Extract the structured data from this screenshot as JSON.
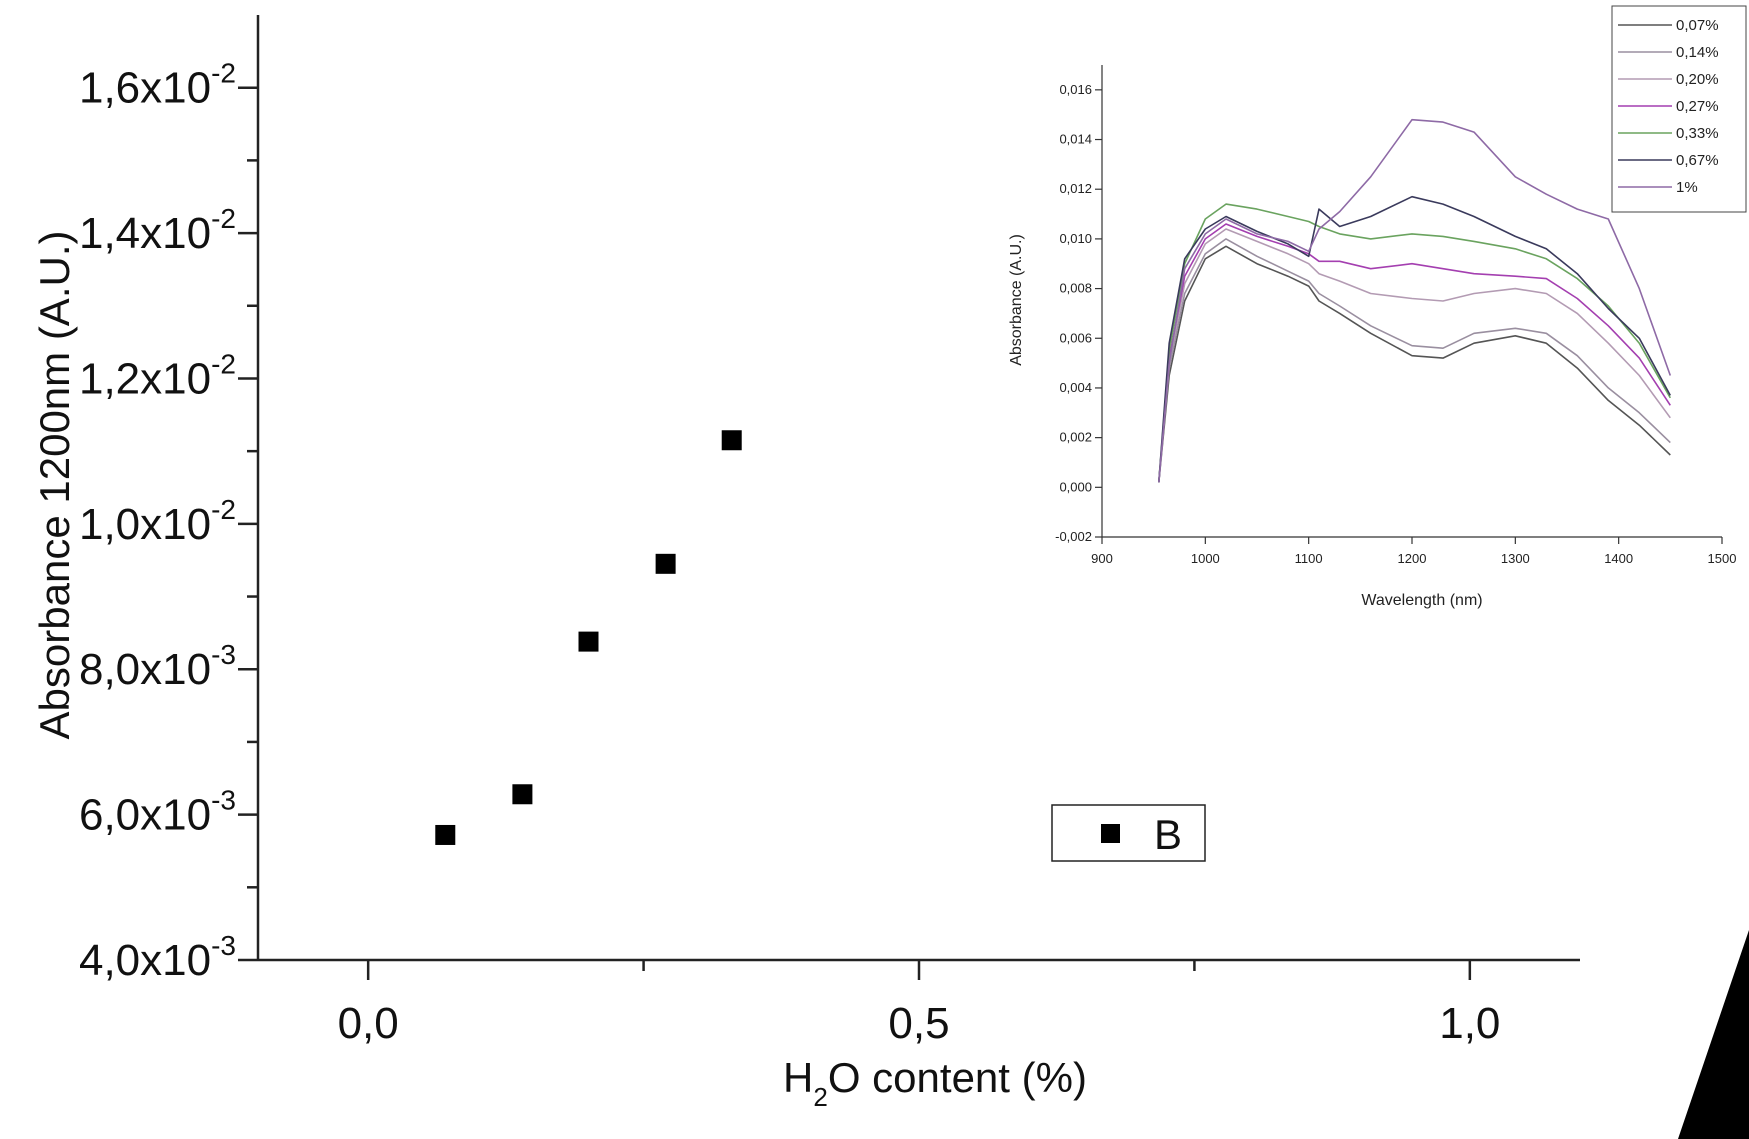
{
  "chart_data": [
    {
      "type": "scatter",
      "xlabel_main": "H",
      "xlabel_sub": "2",
      "xlabel_rest": "O content (%)",
      "ylabel": "Absorbance 1200nm (A.U.)",
      "xlim": [
        -0.1,
        1.1
      ],
      "ylim": [
        0.004,
        0.017
      ],
      "x_ticks": [
        {
          "value": 0.0,
          "label": "0,0"
        },
        {
          "value": 0.5,
          "label": "0,5"
        },
        {
          "value": 1.0,
          "label": "1,0"
        }
      ],
      "y_ticks": [
        {
          "value": 0.004,
          "mantissa": "4,0x10",
          "exponent": "-3"
        },
        {
          "value": 0.006,
          "mantissa": "6,0x10",
          "exponent": "-3"
        },
        {
          "value": 0.008,
          "mantissa": "8,0x10",
          "exponent": "-3"
        },
        {
          "value": 0.01,
          "mantissa": "1,0x10",
          "exponent": "-2"
        },
        {
          "value": 0.012,
          "mantissa": "1,2x10",
          "exponent": "-2"
        },
        {
          "value": 0.014,
          "mantissa": "1,4x10",
          "exponent": "-2"
        },
        {
          "value": 0.016,
          "mantissa": "1,6x10",
          "exponent": "-2"
        }
      ],
      "series": [
        {
          "name": "B",
          "color": "#000000",
          "marker": "square",
          "x": [
            0.07,
            0.14,
            0.2,
            0.27,
            0.33
          ],
          "y": [
            0.00572,
            0.00628,
            0.00838,
            0.00945,
            0.01115
          ]
        }
      ],
      "legend": "center-right",
      "grid": false
    },
    {
      "type": "line",
      "xlabel": "Wavelength (nm)",
      "ylabel": "Absorbance (A.U.)",
      "xlim": [
        900,
        1500
      ],
      "ylim": [
        -0.002,
        0.017
      ],
      "x_ticks": [
        {
          "value": 900,
          "label": "900"
        },
        {
          "value": 1000,
          "label": "1000"
        },
        {
          "value": 1100,
          "label": "1100"
        },
        {
          "value": 1200,
          "label": "1200"
        },
        {
          "value": 1300,
          "label": "1300"
        },
        {
          "value": 1400,
          "label": "1400"
        },
        {
          "value": 1500,
          "label": "1500"
        }
      ],
      "y_ticks": [
        {
          "value": -0.002,
          "label": "-0,002"
        },
        {
          "value": 0.0,
          "label": "0,000"
        },
        {
          "value": 0.002,
          "label": "0,002"
        },
        {
          "value": 0.004,
          "label": "0,004"
        },
        {
          "value": 0.006,
          "label": "0,006"
        },
        {
          "value": 0.008,
          "label": "0,008"
        },
        {
          "value": 0.01,
          "label": "0,010"
        },
        {
          "value": 0.012,
          "label": "0,012"
        },
        {
          "value": 0.014,
          "label": "0,014"
        },
        {
          "value": 0.016,
          "label": "0,016"
        }
      ],
      "x": [
        955,
        965,
        980,
        1000,
        1020,
        1050,
        1080,
        1100,
        1110,
        1130,
        1160,
        1200,
        1230,
        1260,
        1300,
        1330,
        1360,
        1390,
        1420,
        1450
      ],
      "series": [
        {
          "name": "0,07%",
          "color": "#555555",
          "values": [
            0.0002,
            0.0045,
            0.0075,
            0.0092,
            0.0097,
            0.009,
            0.0085,
            0.0081,
            0.0075,
            0.007,
            0.0062,
            0.0053,
            0.0052,
            0.0058,
            0.0061,
            0.0058,
            0.0048,
            0.0035,
            0.0025,
            0.0013
          ]
        },
        {
          "name": "0,14%",
          "color": "#9a8fa0",
          "values": [
            0.0002,
            0.0048,
            0.0078,
            0.0094,
            0.01,
            0.0093,
            0.0087,
            0.0083,
            0.0078,
            0.0073,
            0.0065,
            0.0057,
            0.0056,
            0.0062,
            0.0064,
            0.0062,
            0.0053,
            0.004,
            0.003,
            0.0018
          ]
        },
        {
          "name": "0,20%",
          "color": "#b39bb3",
          "values": [
            0.0002,
            0.005,
            0.0082,
            0.0098,
            0.0104,
            0.0099,
            0.0094,
            0.009,
            0.0086,
            0.0083,
            0.0078,
            0.0076,
            0.0075,
            0.0078,
            0.008,
            0.0078,
            0.007,
            0.0058,
            0.0045,
            0.0028
          ]
        },
        {
          "name": "0,27%",
          "color": "#a43fb0",
          "values": [
            0.0002,
            0.0052,
            0.0085,
            0.01,
            0.0106,
            0.0101,
            0.0097,
            0.0094,
            0.0091,
            0.0091,
            0.0088,
            0.009,
            0.0088,
            0.0086,
            0.0085,
            0.0084,
            0.0076,
            0.0065,
            0.0052,
            0.0033
          ]
        },
        {
          "name": "0,33%",
          "color": "#6aa35f",
          "values": [
            0.0002,
            0.0055,
            0.009,
            0.0108,
            0.0114,
            0.0112,
            0.0109,
            0.0107,
            0.0105,
            0.0102,
            0.01,
            0.0102,
            0.0101,
            0.0099,
            0.0096,
            0.0092,
            0.0084,
            0.0073,
            0.0058,
            0.0036
          ]
        },
        {
          "name": "0,67%",
          "color": "#3a3a5c",
          "values": [
            0.0002,
            0.0058,
            0.0092,
            0.0104,
            0.0109,
            0.0103,
            0.0098,
            0.0093,
            0.0112,
            0.0105,
            0.0109,
            0.0117,
            0.0114,
            0.0109,
            0.0101,
            0.0096,
            0.0086,
            0.0072,
            0.006,
            0.0037
          ]
        },
        {
          "name": "1%",
          "color": "#8e6aa6",
          "values": [
            0.0002,
            0.005,
            0.0088,
            0.0102,
            0.0108,
            0.0102,
            0.0099,
            0.0095,
            0.0104,
            0.0111,
            0.0125,
            0.0148,
            0.0147,
            0.0143,
            0.0125,
            0.0118,
            0.0112,
            0.0108,
            0.008,
            0.0045
          ]
        }
      ],
      "legend": "top-right",
      "grid": false
    }
  ]
}
